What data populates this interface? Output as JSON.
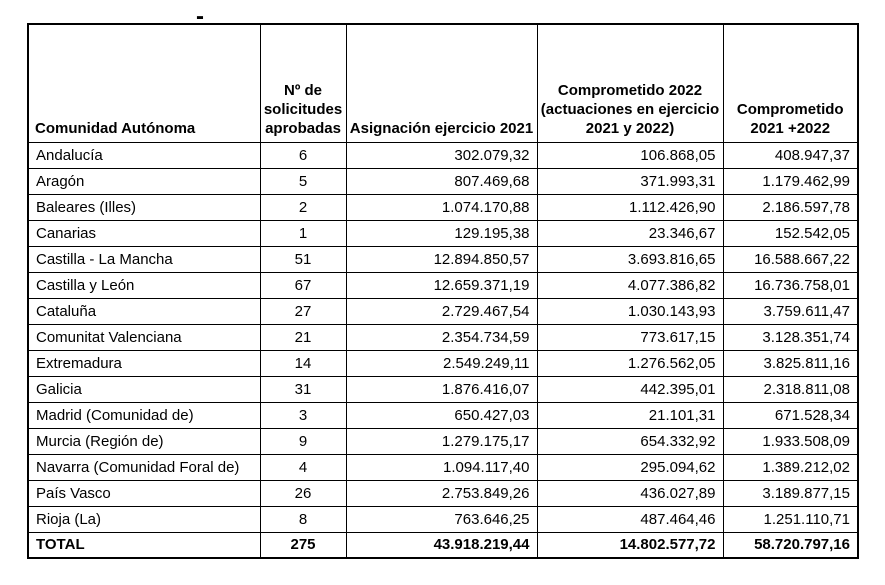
{
  "page": {
    "stray_mark": "-"
  },
  "table": {
    "headers": [
      "Comunidad Autónoma",
      "Nº de\nsolicitudes\naprobadas",
      "Asignación ejercicio 2021",
      "Comprometido 2022\n(actuaciones en ejercicio\n2021 y 2022)",
      "Comprometido\n2021 +2022"
    ],
    "rows": [
      [
        "Andalucía",
        "6",
        "302.079,32",
        "106.868,05",
        "408.947,37"
      ],
      [
        "Aragón",
        "5",
        "807.469,68",
        "371.993,31",
        "1.179.462,99"
      ],
      [
        "Baleares (Illes)",
        "2",
        "1.074.170,88",
        "1.112.426,90",
        "2.186.597,78"
      ],
      [
        "Canarias",
        "1",
        "129.195,38",
        "23.346,67",
        "152.542,05"
      ],
      [
        "Castilla - La Mancha",
        "51",
        "12.894.850,57",
        "3.693.816,65",
        "16.588.667,22"
      ],
      [
        "Castilla y León",
        "67",
        "12.659.371,19",
        "4.077.386,82",
        "16.736.758,01"
      ],
      [
        "Cataluña",
        "27",
        "2.729.467,54",
        "1.030.143,93",
        "3.759.611,47"
      ],
      [
        "Comunitat Valenciana",
        "21",
        "2.354.734,59",
        "773.617,15",
        "3.128.351,74"
      ],
      [
        "Extremadura",
        "14",
        "2.549.249,11",
        "1.276.562,05",
        "3.825.811,16"
      ],
      [
        "Galicia",
        "31",
        "1.876.416,07",
        "442.395,01",
        "2.318.811,08"
      ],
      [
        "Madrid (Comunidad de)",
        "3",
        "650.427,03",
        "21.101,31",
        "671.528,34"
      ],
      [
        "Murcia (Región de)",
        "9",
        "1.279.175,17",
        "654.332,92",
        "1.933.508,09"
      ],
      [
        "Navarra (Comunidad Foral de)",
        "4",
        "1.094.117,40",
        "295.094,62",
        "1.389.212,02"
      ],
      [
        "País Vasco",
        "26",
        "2.753.849,26",
        "436.027,89",
        "3.189.877,15"
      ],
      [
        "Rioja (La)",
        "8",
        "763.646,25",
        "487.464,46",
        "1.251.110,71"
      ]
    ],
    "total": [
      "TOTAL",
      "275",
      "43.918.219,44",
      "14.802.577,72",
      "58.720.797,16"
    ]
  }
}
